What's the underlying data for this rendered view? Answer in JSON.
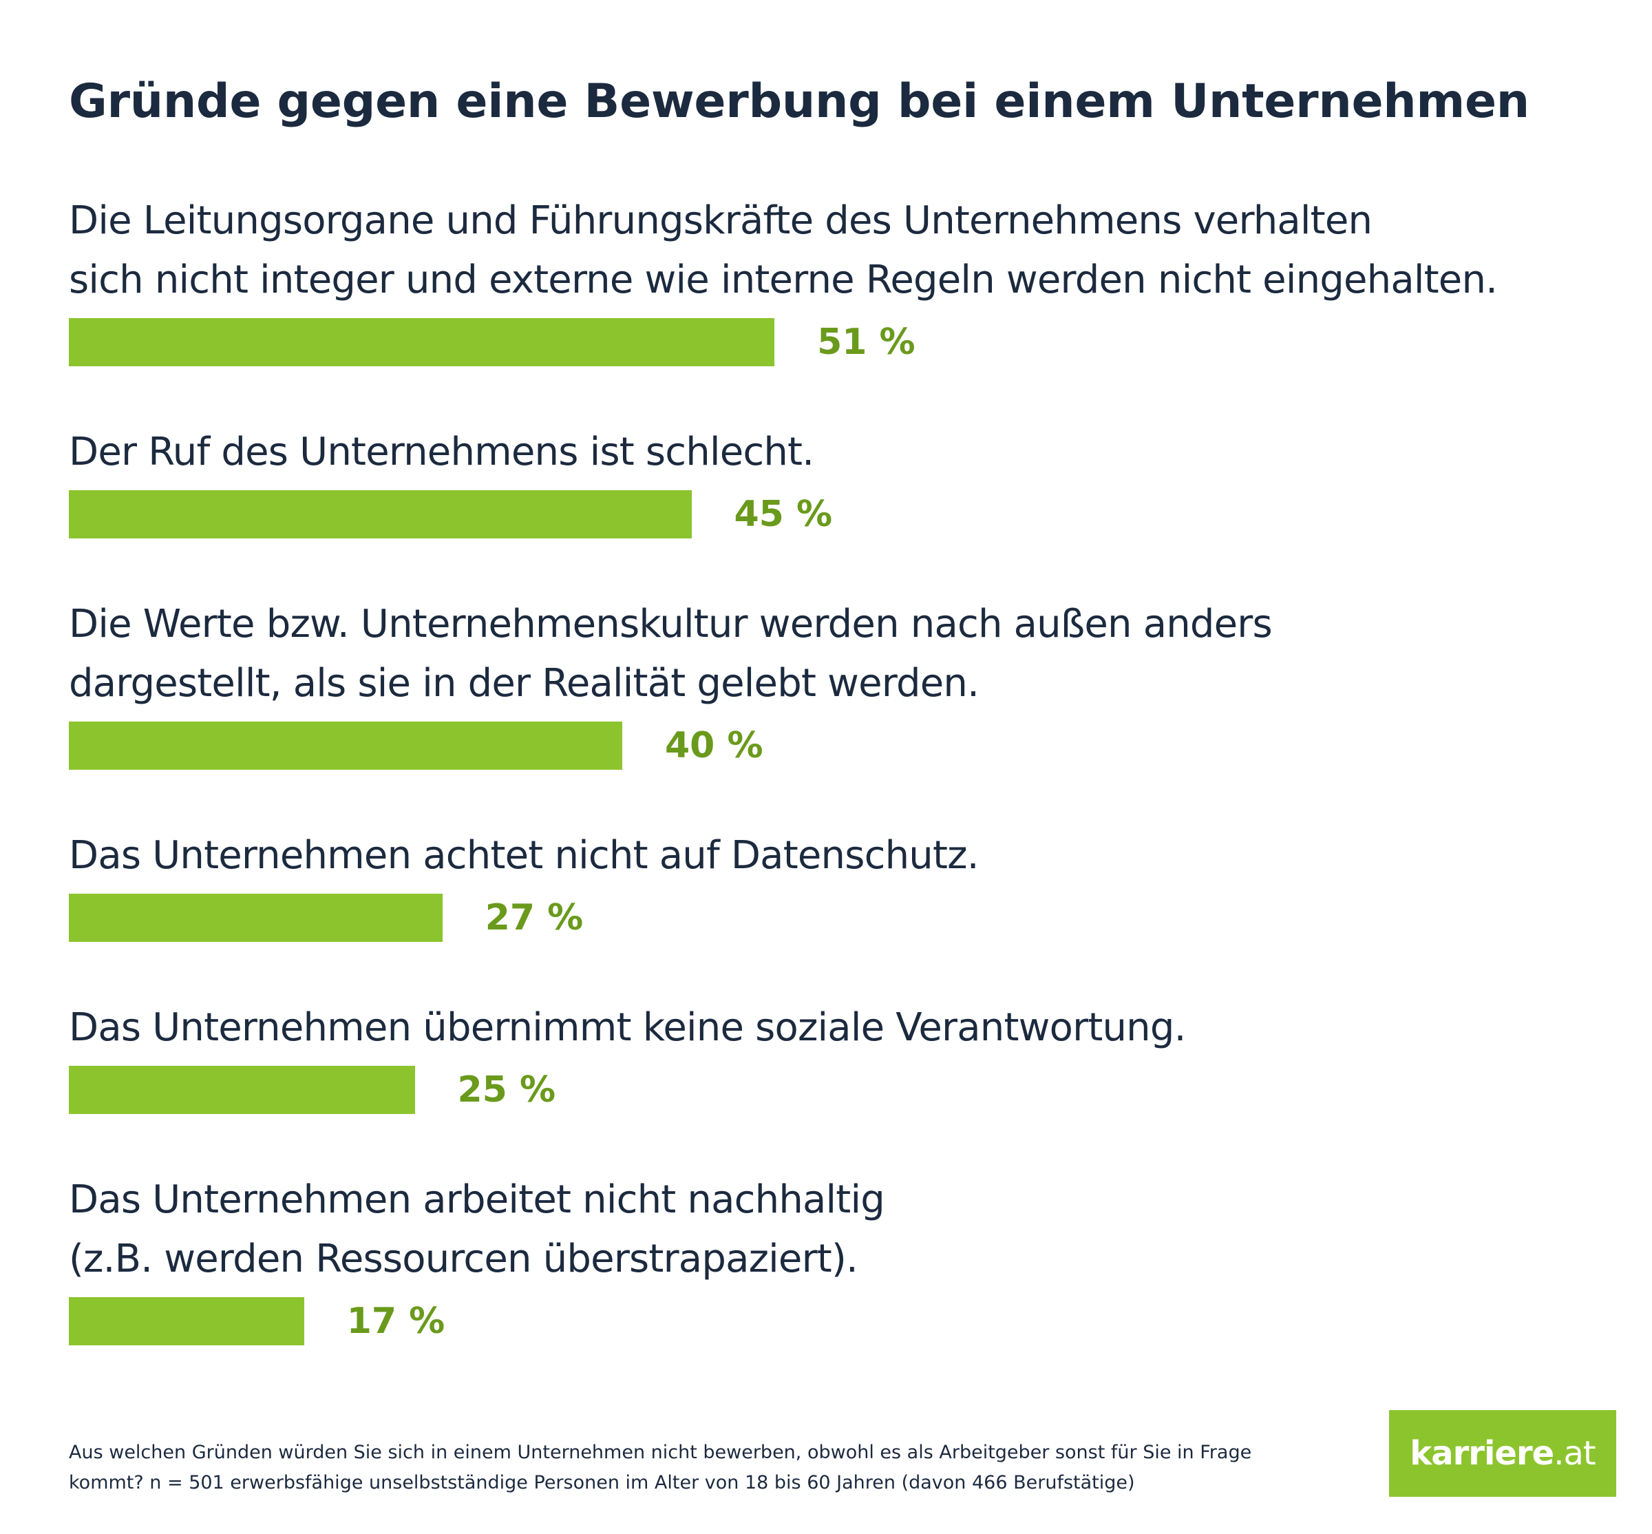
{
  "colors": {
    "bar": "#8cc42e",
    "value_text": "#6a9a1c",
    "text": "#1c2a3f",
    "logo_bg": "#8cc42e"
  },
  "chart_data": {
    "type": "bar",
    "orientation": "horizontal",
    "title": "Gründe gegen eine Bewerbung bei einem Unternehmen",
    "unit": "%",
    "xlim": [
      0,
      100
    ],
    "categories": [
      [
        "Die Leitungsorgane und Führungskräfte des Unternehmens verhalten",
        "sich nicht integer und externe wie interne Regeln werden nicht eingehalten."
      ],
      [
        "Der Ruf des Unternehmens ist schlecht."
      ],
      [
        "Die Werte bzw. Unternehmenskultur werden nach außen anders",
        "dargestellt, als sie in der Realität gelebt werden."
      ],
      [
        "Das Unternehmen achtet nicht auf Datenschutz."
      ],
      [
        "Das Unternehmen übernimmt keine soziale Verantwortung."
      ],
      [
        "Das Unternehmen arbeitet nicht nachhaltig",
        "(z.B. werden Ressourcen überstrapaziert)."
      ]
    ],
    "values": [
      51,
      45,
      40,
      27,
      25,
      17
    ],
    "value_labels": [
      "51 %",
      "45 %",
      "40 %",
      "27 %",
      "25 %",
      "17 %"
    ]
  },
  "footnote": "Aus welchen Gründen würden Sie sich in einem Unternehmen nicht bewerben, obwohl es als Arbeitgeber sonst für Sie in Frage kommt? n = 501 erwerbsfähige unselbstständige Personen im Alter von 18 bis 60 Jahren (davon 466 Berufstätige)",
  "logo": {
    "name": "karriere",
    "suffix": ".at"
  }
}
